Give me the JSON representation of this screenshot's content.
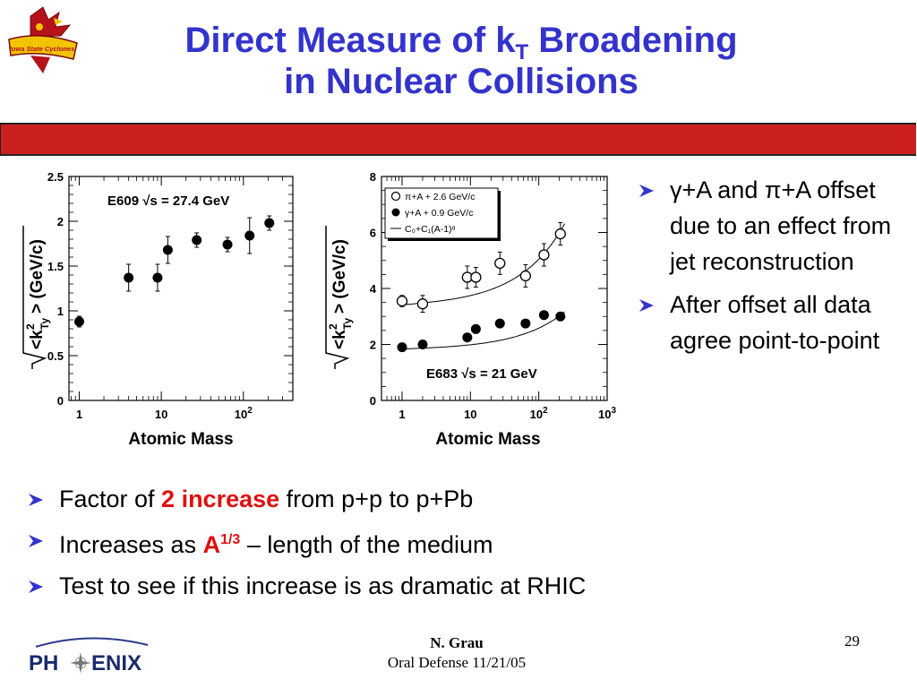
{
  "slide": {
    "title_line1_pre": "Direct Measure of k",
    "title_sub": "T",
    "title_line1_post": " Broadening",
    "title_line2": "in Nuclear Collisions",
    "accent_color": "#cc1f1f",
    "title_color": "#3333cc"
  },
  "logo": {
    "text": "Iowa State Cyclones"
  },
  "right_bullets": [
    "γ+A and π+A offset due to an effect from jet reconstruction",
    "After offset all data agree point-to-point"
  ],
  "bottom_bullets": {
    "b1_pre": "Factor of ",
    "b1_hl": "2 increase",
    "b1_post": " from p+p to p+Pb",
    "b2_pre": "Increases as ",
    "b2_hl": "A",
    "b2_sup": "1/3",
    "b2_post": " – length of the medium",
    "b3": "Test to see if this increase is as dramatic at RHIC"
  },
  "footer": {
    "name": "N. Grau",
    "event": "Oral Defense 11/21/05",
    "page": "29",
    "logo_left": "PH",
    "logo_right": "ENIX"
  },
  "chart_data": [
    {
      "type": "scatter",
      "xscale": "log",
      "xlim": [
        0.75,
        400
      ],
      "ylim": [
        0,
        2.5
      ],
      "xlabel": "Atomic Mass",
      "ylabel": "<k²Ty> (GeV/c)",
      "yticks": [
        "0",
        "0.5",
        "1",
        "1.5",
        "2",
        "2.5"
      ],
      "xticks": [
        "1",
        "10",
        "10²"
      ],
      "annotation": "E609 √s = 27.4 GeV",
      "series": [
        {
          "marker": "filled-circle",
          "points": [
            {
              "x": 1,
              "y": 0.88,
              "err": 0.06
            },
            {
              "x": 4,
              "y": 1.37,
              "err": 0.15
            },
            {
              "x": 9,
              "y": 1.37,
              "err": 0.15
            },
            {
              "x": 12,
              "y": 1.68,
              "err": 0.15
            },
            {
              "x": 27,
              "y": 1.79,
              "err": 0.08
            },
            {
              "x": 64,
              "y": 1.74,
              "err": 0.08
            },
            {
              "x": 119,
              "y": 1.84,
              "err": 0.2
            },
            {
              "x": 207,
              "y": 1.98,
              "err": 0.08
            }
          ]
        }
      ]
    },
    {
      "type": "scatter",
      "xscale": "log",
      "xlim": [
        0.5,
        1000
      ],
      "ylim": [
        0,
        8
      ],
      "xlabel": "Atomic Mass",
      "ylabel": "<k²Ty> (GeV/c)",
      "yticks": [
        "0",
        "2",
        "4",
        "6",
        "8"
      ],
      "xticks": [
        "1",
        "10",
        "10²",
        "10³"
      ],
      "annotation": "E683 √s = 21 GeV",
      "legend_position": "top-left",
      "series": [
        {
          "name": "π+A + 2.6 GeV/c",
          "marker": "open-circle",
          "points": [
            {
              "x": 1,
              "y": 3.55,
              "err": 0.2
            },
            {
              "x": 2,
              "y": 3.45,
              "err": 0.3
            },
            {
              "x": 9,
              "y": 4.4,
              "err": 0.4
            },
            {
              "x": 12,
              "y": 4.4,
              "err": 0.35
            },
            {
              "x": 27,
              "y": 4.9,
              "err": 0.4
            },
            {
              "x": 64,
              "y": 4.45,
              "err": 0.4
            },
            {
              "x": 119,
              "y": 5.2,
              "err": 0.4
            },
            {
              "x": 207,
              "y": 5.95,
              "err": 0.4
            }
          ]
        },
        {
          "name": "γ+A + 0.9 GeV/c",
          "marker": "filled-circle",
          "points": [
            {
              "x": 1,
              "y": 1.9,
              "err": 0.1
            },
            {
              "x": 2,
              "y": 2.0,
              "err": 0.1
            },
            {
              "x": 9,
              "y": 2.25,
              "err": 0.1
            },
            {
              "x": 12,
              "y": 2.55,
              "err": 0.15
            },
            {
              "x": 27,
              "y": 2.75,
              "err": 0.1
            },
            {
              "x": 64,
              "y": 2.75,
              "err": 0.1
            },
            {
              "x": 119,
              "y": 3.05,
              "err": 0.1
            },
            {
              "x": 207,
              "y": 3.0,
              "err": 0.1
            }
          ]
        },
        {
          "name": "C₀+C₁(A-1)ᵅ",
          "marker": "line",
          "fits": [
            {
              "c0": 3.4,
              "c1": 0.083,
              "alpha": 0.65
            },
            {
              "c0": 1.83,
              "c1": 0.038,
              "alpha": 0.65
            }
          ]
        }
      ]
    }
  ]
}
